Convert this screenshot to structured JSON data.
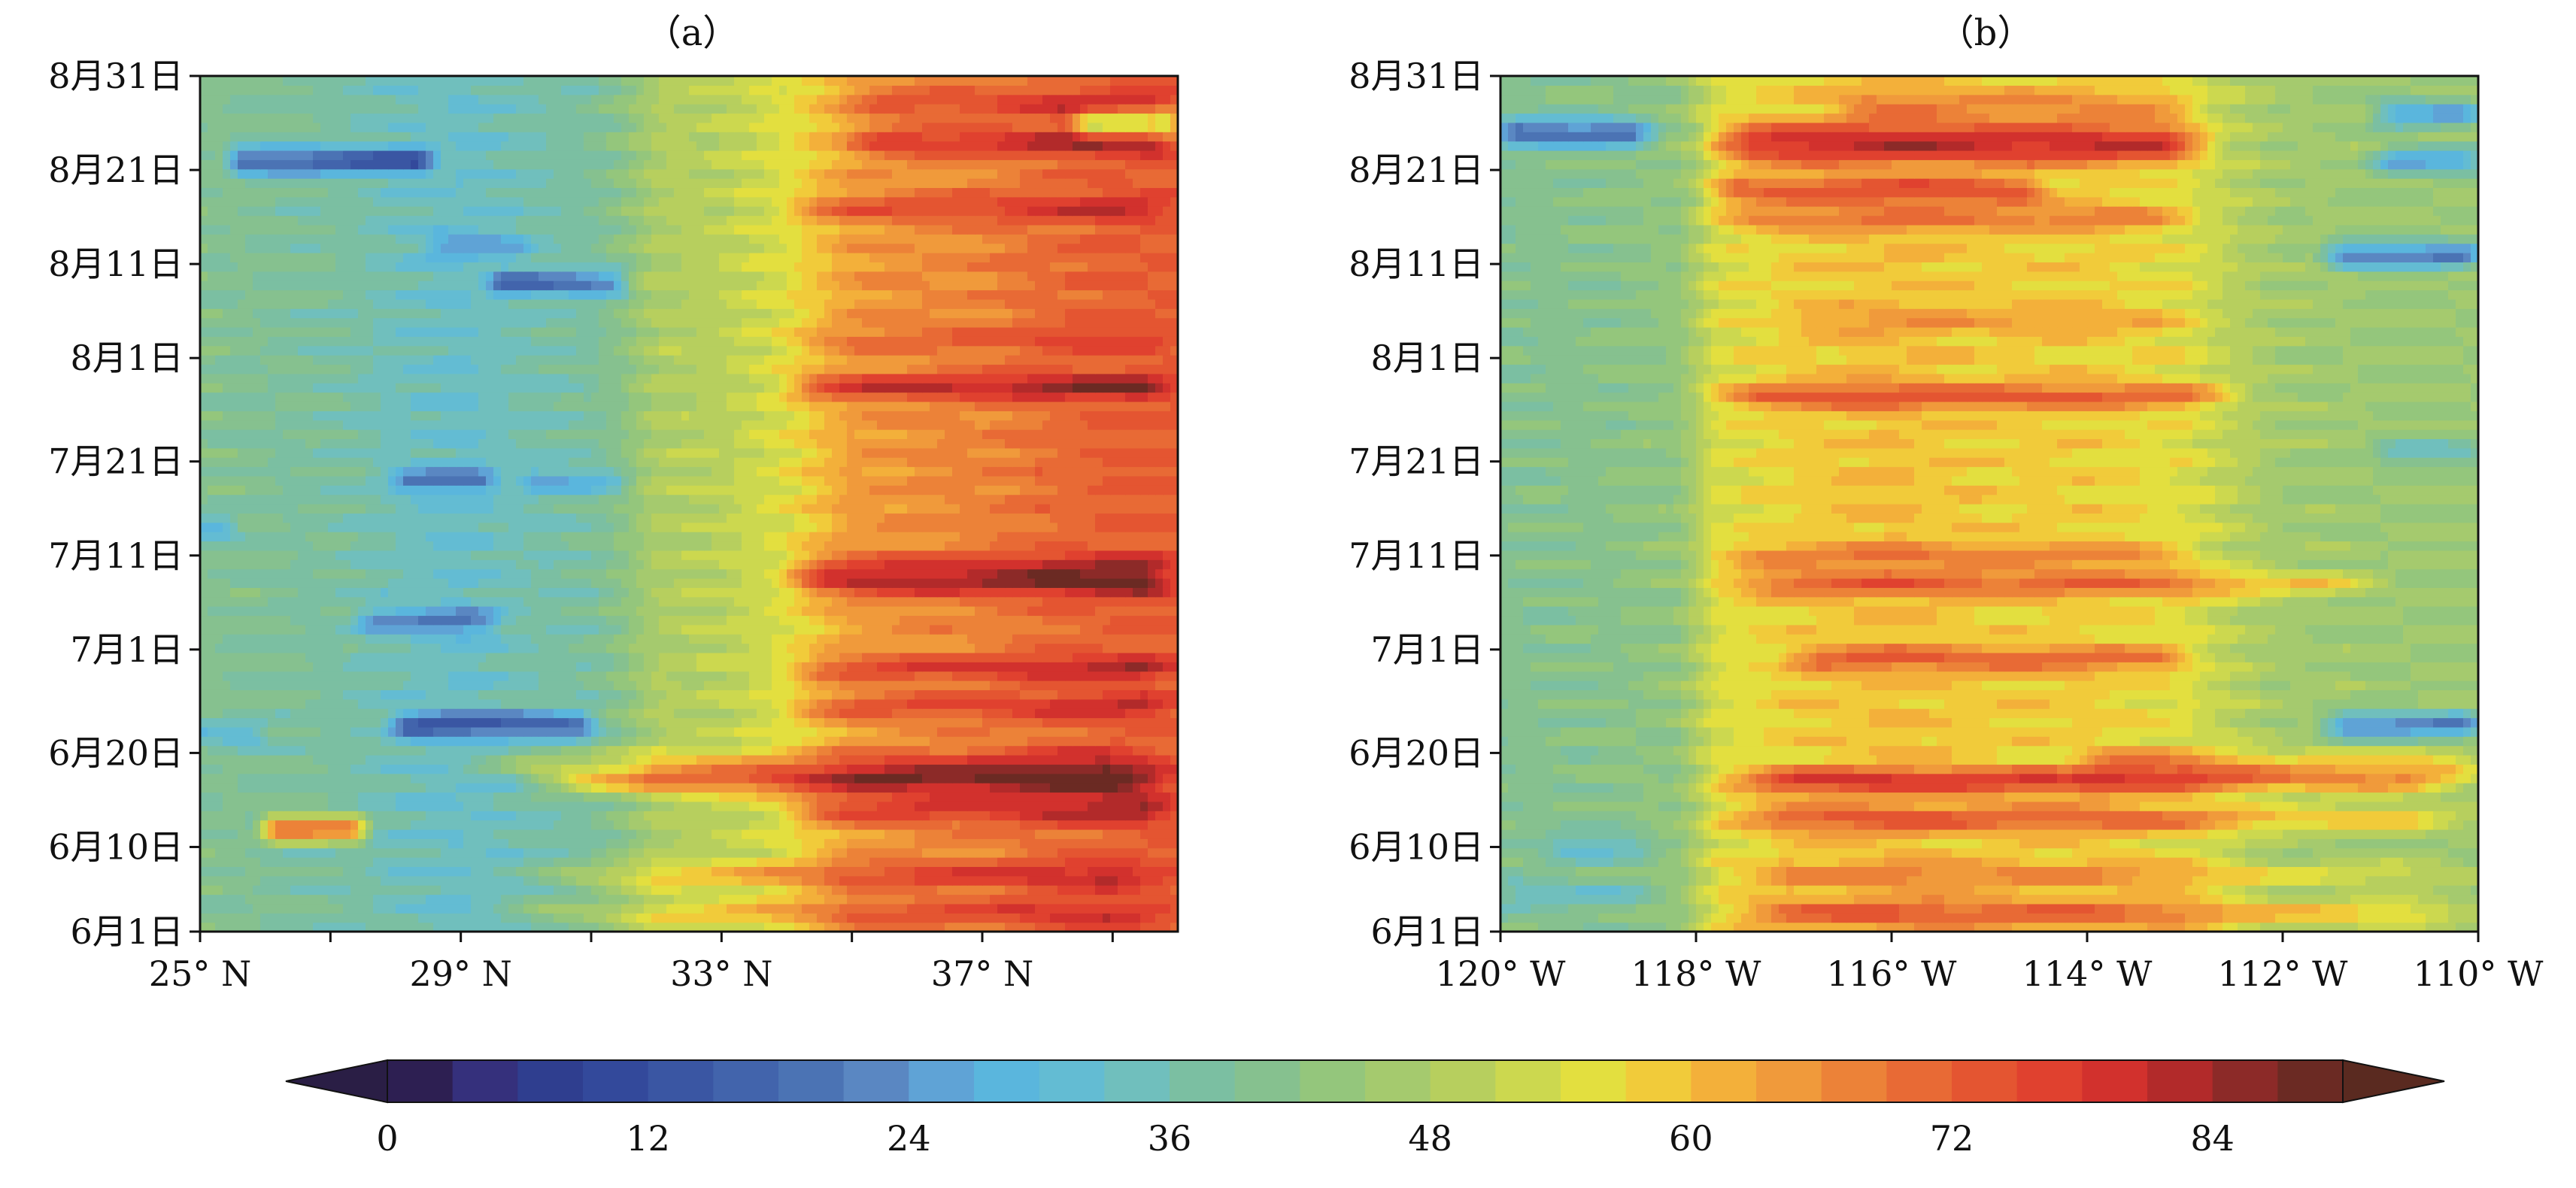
{
  "figure": {
    "colorbar": {
      "tick_labels": [
        "0",
        "12",
        "24",
        "36",
        "48",
        "60",
        "72",
        "84"
      ],
      "tick_values": [
        0,
        12,
        24,
        36,
        48,
        60,
        72,
        84
      ],
      "levels": [
        0,
        3,
        6,
        9,
        12,
        15,
        18,
        21,
        24,
        27,
        30,
        33,
        36,
        39,
        42,
        45,
        48,
        51,
        54,
        57,
        60,
        63,
        66,
        69,
        72,
        75,
        78,
        81,
        84,
        87
      ],
      "extend": "both",
      "colors": [
        "#2d1f52",
        "#35307c",
        "#2f3e8f",
        "#33499b",
        "#3a56a3",
        "#4264ac",
        "#4b73b4",
        "#5a87c2",
        "#5fa3d6",
        "#5ab6dd",
        "#63bcd3",
        "#70bfbd",
        "#7bbfa2",
        "#86c18f",
        "#94c67c",
        "#a5ca6e",
        "#b7cf5e",
        "#ccd84f",
        "#e3df3f",
        "#f1cb3a",
        "#f3b03a",
        "#f09a3b",
        "#ec8238",
        "#e86a35",
        "#e45531",
        "#e0412f",
        "#d2312d",
        "#b22a2a",
        "#8c2a28",
        "#6b2a23"
      ],
      "under_color": "#2a1e45",
      "over_color": "#5a2a20"
    }
  },
  "chart_data": [
    {
      "type": "heatmap",
      "title": "（a）",
      "xlabel": "",
      "ylabel": "",
      "x_tick_labels": [
        "25° N",
        "29° N",
        "33° N",
        "37° N"
      ],
      "x_tick_values": [
        25,
        29,
        33,
        37
      ],
      "xlim": [
        25,
        40
      ],
      "y_tick_labels": [
        "6月1日",
        "6月10日",
        "6月20日",
        "7月1日",
        "7月11日",
        "7月21日",
        "8月1日",
        "8月11日",
        "8月21日",
        "8月31日"
      ],
      "y_tick_days": [
        0,
        9,
        19,
        30,
        40,
        50,
        61,
        71,
        81,
        91
      ],
      "ylim": [
        0,
        91
      ],
      "profile_points": [
        [
          25,
          40
        ],
        [
          26,
          39
        ],
        [
          27,
          38
        ],
        [
          28,
          35
        ],
        [
          29,
          33
        ],
        [
          30,
          36
        ],
        [
          31,
          38
        ],
        [
          31.5,
          42
        ],
        [
          32,
          48
        ],
        [
          33,
          50
        ],
        [
          34,
          55
        ],
        [
          35,
          64
        ],
        [
          36,
          66
        ],
        [
          37,
          67
        ],
        [
          38,
          70
        ],
        [
          39,
          72
        ],
        [
          40,
          72
        ]
      ],
      "day_anomalies": [
        {
          "day": 2,
          "x_from": 29.5,
          "x_to": 40,
          "delta": 10
        },
        {
          "day": 6,
          "x_from": 30,
          "x_to": 40,
          "delta": 12
        },
        {
          "day": 11,
          "x_from": 26,
          "x_to": 27.5,
          "delta": 35
        },
        {
          "day": 13,
          "x_from": 34,
          "x_to": 40,
          "delta": 14
        },
        {
          "day": 16,
          "x_from": 30,
          "x_to": 40,
          "delta": 22
        },
        {
          "day": 18,
          "x_from": 29,
          "x_to": 40,
          "delta": 12
        },
        {
          "day": 21,
          "x_from": 24.5,
          "x_to": 26,
          "delta": -10
        },
        {
          "day": 22,
          "x_from": 28,
          "x_to": 31,
          "delta": -22
        },
        {
          "day": 24,
          "x_from": 34,
          "x_to": 40,
          "delta": 10
        },
        {
          "day": 28,
          "x_from": 34,
          "x_to": 40,
          "delta": 12
        },
        {
          "day": 33,
          "x_from": 27.5,
          "x_to": 29.5,
          "delta": -14
        },
        {
          "day": 37,
          "x_from": 34,
          "x_to": 40,
          "delta": 16
        },
        {
          "day": 39,
          "x_from": 34,
          "x_to": 40,
          "delta": 12
        },
        {
          "day": 43,
          "x_from": 24.5,
          "x_to": 25.5,
          "delta": -12
        },
        {
          "day": 48,
          "x_from": 28,
          "x_to": 29.5,
          "delta": -14
        },
        {
          "day": 48,
          "x_from": 30,
          "x_to": 31.5,
          "delta": -10
        },
        {
          "day": 58,
          "x_from": 34,
          "x_to": 40,
          "delta": 16
        },
        {
          "day": 63,
          "x_from": 34,
          "x_to": 40,
          "delta": 6
        },
        {
          "day": 69,
          "x_from": 29.5,
          "x_to": 31.5,
          "delta": -20
        },
        {
          "day": 73,
          "x_from": 28.5,
          "x_to": 30,
          "delta": -10
        },
        {
          "day": 77,
          "x_from": 34,
          "x_to": 40,
          "delta": 10
        },
        {
          "day": 82,
          "x_from": 25.5,
          "x_to": 28.5,
          "delta": -26
        },
        {
          "day": 84,
          "x_from": 35,
          "x_to": 40,
          "delta": 14
        },
        {
          "day": 88,
          "x_from": 35,
          "x_to": 40,
          "delta": 10
        },
        {
          "day": 86,
          "x_from": 38.5,
          "x_to": 40,
          "delta": -26
        }
      ]
    },
    {
      "type": "heatmap",
      "title": "（b）",
      "xlabel": "",
      "ylabel": "",
      "x_tick_labels": [
        "120° W",
        "118° W",
        "116° W",
        "114° W",
        "112° W",
        "110° W"
      ],
      "x_tick_values": [
        120,
        118,
        116,
        114,
        112,
        110
      ],
      "xlim": [
        120,
        110
      ],
      "y_tick_labels": [
        "6月1日",
        "6月10日",
        "6月20日",
        "7月1日",
        "7月11日",
        "7月21日",
        "8月1日",
        "8月11日",
        "8月21日",
        "8月31日"
      ],
      "y_tick_days": [
        0,
        9,
        19,
        30,
        40,
        50,
        61,
        71,
        81,
        91
      ],
      "ylim": [
        0,
        91
      ],
      "profile_points": [
        [
          120,
          40
        ],
        [
          119,
          41
        ],
        [
          118.2,
          43
        ],
        [
          117.8,
          54
        ],
        [
          117,
          58
        ],
        [
          116,
          60
        ],
        [
          115,
          58
        ],
        [
          114,
          58
        ],
        [
          113,
          55
        ],
        [
          112.5,
          50
        ],
        [
          112,
          46
        ],
        [
          111,
          45
        ],
        [
          110,
          45
        ]
      ],
      "day_anomalies": [
        {
          "day": 2,
          "x_from": 117.8,
          "x_to": 110,
          "delta": 16
        },
        {
          "day": 4,
          "x_from": 120,
          "x_to": 118.5,
          "delta": -8
        },
        {
          "day": 6,
          "x_from": 117.8,
          "x_to": 110,
          "delta": 10
        },
        {
          "day": 9,
          "x_from": 119.5,
          "x_to": 118.5,
          "delta": -10
        },
        {
          "day": 12,
          "x_from": 117.8,
          "x_to": 110,
          "delta": 16
        },
        {
          "day": 16,
          "x_from": 117.8,
          "x_to": 110,
          "delta": 22
        },
        {
          "day": 18,
          "x_from": 114,
          "x_to": 110,
          "delta": 14
        },
        {
          "day": 22,
          "x_from": 111.5,
          "x_to": 110,
          "delta": -26
        },
        {
          "day": 29,
          "x_from": 117,
          "x_to": 113,
          "delta": 14
        },
        {
          "day": 37,
          "x_from": 117.8,
          "x_to": 111,
          "delta": 14
        },
        {
          "day": 40,
          "x_from": 117.8,
          "x_to": 113,
          "delta": 10
        },
        {
          "day": 51,
          "x_from": 111,
          "x_to": 110,
          "delta": -12
        },
        {
          "day": 57,
          "x_from": 117.8,
          "x_to": 112.5,
          "delta": 16
        },
        {
          "day": 65,
          "x_from": 117,
          "x_to": 113,
          "delta": 6
        },
        {
          "day": 72,
          "x_from": 111.5,
          "x_to": 110,
          "delta": -28
        },
        {
          "day": 76,
          "x_from": 117.8,
          "x_to": 113,
          "delta": 12
        },
        {
          "day": 79,
          "x_from": 117.8,
          "x_to": 114.5,
          "delta": 18
        },
        {
          "day": 83,
          "x_from": 117.8,
          "x_to": 112.8,
          "delta": 22
        },
        {
          "day": 82,
          "x_from": 111,
          "x_to": 110,
          "delta": -22
        },
        {
          "day": 85,
          "x_from": 117.8,
          "x_to": 112.8,
          "delta": 18
        },
        {
          "day": 85,
          "x_from": 120,
          "x_to": 118.5,
          "delta": -26
        },
        {
          "day": 88,
          "x_from": 116.5,
          "x_to": 113,
          "delta": 10
        },
        {
          "day": 87,
          "x_from": 111,
          "x_to": 110,
          "delta": -22
        }
      ]
    }
  ]
}
